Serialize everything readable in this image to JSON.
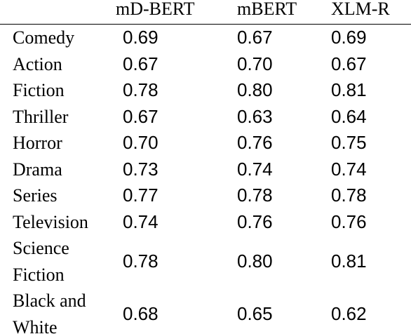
{
  "table": {
    "header": [
      "mD-BERT",
      "mBERT",
      "XLM-R"
    ],
    "rows": [
      [
        "Comedy",
        "0.69",
        "0.67",
        "0.69"
      ],
      [
        "Action",
        "0.67",
        "0.70",
        "0.67"
      ],
      [
        "Fiction",
        "0.78",
        "0.80",
        "0.81"
      ],
      [
        "Thriller",
        "0.67",
        "0.63",
        "0.64"
      ],
      [
        "Horror",
        "0.70",
        "0.76",
        "0.75"
      ],
      [
        "Drama",
        "0.73",
        "0.74",
        "0.74"
      ],
      [
        "Series",
        "0.77",
        "0.78",
        "0.78"
      ],
      [
        "Television",
        "0.74",
        "0.76",
        "0.76"
      ],
      [
        "Science Fiction",
        "0.78",
        "0.80",
        "0.81"
      ],
      [
        "Black and White",
        "0.68",
        "0.65",
        "0.62"
      ]
    ]
  }
}
